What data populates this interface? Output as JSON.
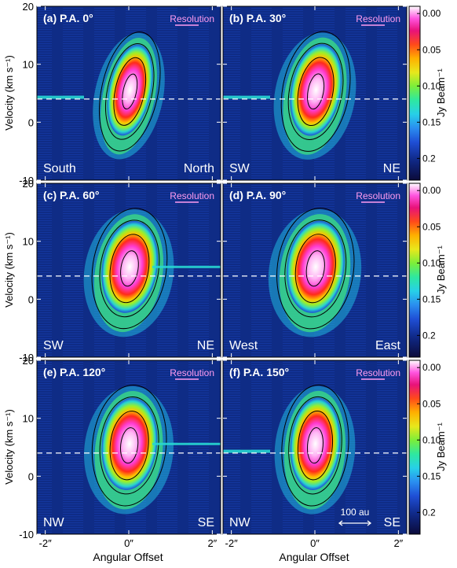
{
  "figure": {
    "y_axis_label": "Velocity (km s⁻¹)",
    "x_axis_label": "Angular Offset",
    "colorbar_label": "Jy Beam⁻¹",
    "resolution_label": "Resolution",
    "scale_bar_label": "100 au",
    "y_ticks": [
      "20",
      "10",
      "0",
      "-10"
    ],
    "x_ticks": [
      "-2″",
      "0″",
      "2″"
    ],
    "colorbar_ticks": [
      "0.2",
      "0.15",
      "0.10",
      "0.05",
      "0.00"
    ]
  },
  "chart_data": {
    "type": "heatmap",
    "description_type": "position-velocity diagrams",
    "xlabel": "Angular Offset",
    "ylabel": "Velocity (km s⁻¹)",
    "xlim": [
      -2.2,
      2.2
    ],
    "ylim": [
      -10,
      20
    ],
    "x_ticks": [
      -2,
      0,
      2
    ],
    "y_ticks": [
      -10,
      0,
      10,
      20
    ],
    "systemic_velocity": 4,
    "colorbar": {
      "label": "Jy Beam⁻¹",
      "range": [
        -0.03,
        0.21
      ],
      "ticks": [
        0.0,
        0.05,
        0.1,
        0.15,
        0.2
      ]
    },
    "scale_bar": {
      "label": "100 au"
    },
    "panels": [
      {
        "label": "(a) P.A. 0°",
        "pa": 0,
        "left_dir": "South",
        "right_dir": "North"
      },
      {
        "label": "(b) P.A. 30°",
        "pa": 30,
        "left_dir": "SW",
        "right_dir": "NE"
      },
      {
        "label": "(c) P.A. 60°",
        "pa": 60,
        "left_dir": "SW",
        "right_dir": "NE"
      },
      {
        "label": "(d) P.A. 90°",
        "pa": 90,
        "left_dir": "West",
        "right_dir": "East"
      },
      {
        "label": "(e) P.A. 120°",
        "pa": 120,
        "left_dir": "NW",
        "right_dir": "SE"
      },
      {
        "label": "(f) P.A. 150°",
        "pa": 150,
        "left_dir": "NW",
        "right_dir": "SE"
      }
    ]
  }
}
